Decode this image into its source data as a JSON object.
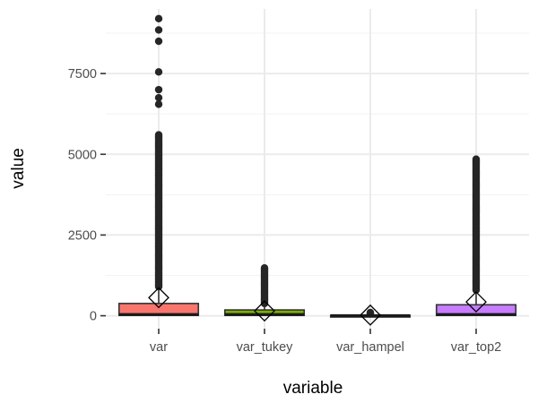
{
  "chart_data": {
    "type": "boxplot",
    "xlabel": "variable",
    "ylabel": "value",
    "categories": [
      "var",
      "var_tukey",
      "var_hampel",
      "var_top2"
    ],
    "y_ticks": [
      0,
      2500,
      5000,
      7500
    ],
    "y_tick_labels": [
      "0",
      "2500",
      "5000",
      "7500"
    ],
    "ylim": [
      -400,
      9500
    ],
    "grid": "major and minor, light gray",
    "legend": "none",
    "mean_marker": "hollow diamond",
    "series": [
      {
        "category": "var",
        "color": "#F8766D",
        "q1": 10,
        "median": 40,
        "q3": 380,
        "whisker_low": 0,
        "whisker_high": 900,
        "mean": 560,
        "outliers_range": [
          900,
          5600
        ],
        "outliers_sparse": [
          6550,
          6750,
          7000,
          7550,
          8500,
          8850,
          9200
        ]
      },
      {
        "category": "var_tukey",
        "color": "#7CAE00",
        "q1": 10,
        "median": 40,
        "q3": 180,
        "whisker_low": 0,
        "whisker_high": 380,
        "mean": 150,
        "outliers_range": [
          380,
          1480
        ],
        "outliers_sparse": []
      },
      {
        "category": "var_hampel",
        "color": "#00BFC4",
        "q1": 0,
        "median": 5,
        "q3": 15,
        "whisker_low": 0,
        "whisker_high": 35,
        "mean": 20,
        "outliers_range": [
          60,
          100
        ],
        "outliers_sparse": []
      },
      {
        "category": "var_top2",
        "color": "#C77CFF",
        "q1": 10,
        "median": 40,
        "q3": 340,
        "whisker_low": 0,
        "whisker_high": 800,
        "mean": 430,
        "outliers_range": [
          800,
          4850
        ],
        "outliers_sparse": []
      }
    ]
  }
}
